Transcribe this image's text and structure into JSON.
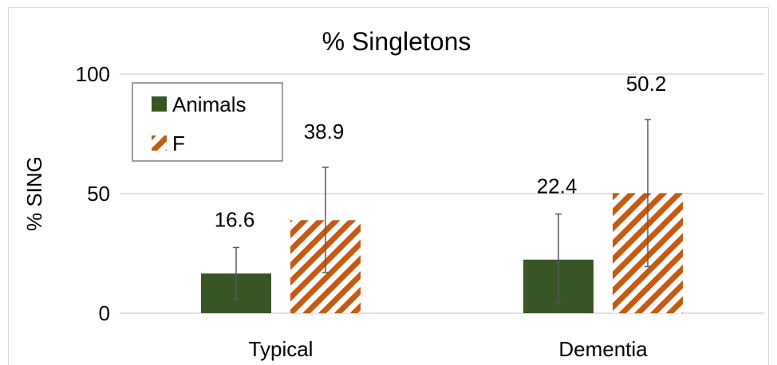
{
  "chart_data": {
    "type": "bar",
    "title": "% Singletons",
    "xlabel": "",
    "ylabel": "% SING",
    "ylim": [
      0,
      100
    ],
    "yticks": [
      0,
      50,
      100
    ],
    "categories": [
      "Typical",
      "Dementia"
    ],
    "series": [
      {
        "name": "Animals",
        "values": [
          16.6,
          22.4
        ],
        "error_low": [
          6,
          4
        ],
        "error_high": [
          27.5,
          41.5
        ],
        "color": "#375623",
        "pattern": "solid"
      },
      {
        "name": "F",
        "values": [
          38.9,
          50.2
        ],
        "error_low": [
          17,
          19.5
        ],
        "error_high": [
          61,
          81
        ],
        "color": "#c55a11",
        "pattern": "diagonal-stripes"
      }
    ],
    "data_labels": [
      [
        "16.6",
        "22.4"
      ],
      [
        "38.9",
        "50.2"
      ]
    ],
    "legend_position": "top-left",
    "grid": true
  }
}
